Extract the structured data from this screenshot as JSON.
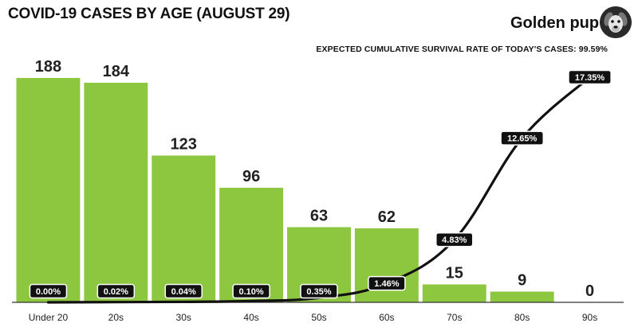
{
  "title": "COVID-19 CASES BY AGE (AUGUST 29)",
  "brand": "Golden pup",
  "logo_icon": "dog-avatar-icon",
  "chart_data": {
    "type": "bar",
    "title": "COVID-19 CASES BY AGE (AUGUST 29)",
    "subtitle": "EXPECTED CUMULATIVE SURVIVAL RATE OF TODAY'S CASES: 99.59%",
    "categories": [
      "Under 20",
      "20s",
      "30s",
      "40s",
      "50s",
      "60s",
      "70s",
      "80s",
      "90s"
    ],
    "values": [
      188,
      184,
      123,
      96,
      63,
      62,
      15,
      9,
      0
    ],
    "value_labels": [
      "188",
      "184",
      "123",
      "96",
      "63",
      "62",
      "15",
      "9",
      "0"
    ],
    "line": {
      "values": [
        0.0,
        0.02,
        0.04,
        0.1,
        0.35,
        1.46,
        4.83,
        12.65,
        17.35
      ],
      "labels": [
        "0.00%",
        "0.02%",
        "0.04%",
        "0.10%",
        "0.35%",
        "1.46%",
        "4.83%",
        "12.65%",
        "17.35%"
      ],
      "ylim": [
        0,
        20
      ]
    },
    "ylim": [
      0,
      200
    ],
    "grid": false,
    "colors": {
      "bar": "#8dc63f",
      "line": "#111111",
      "label_bg": "#111111",
      "label_text": "#ffffff",
      "axis": "#333333"
    }
  }
}
